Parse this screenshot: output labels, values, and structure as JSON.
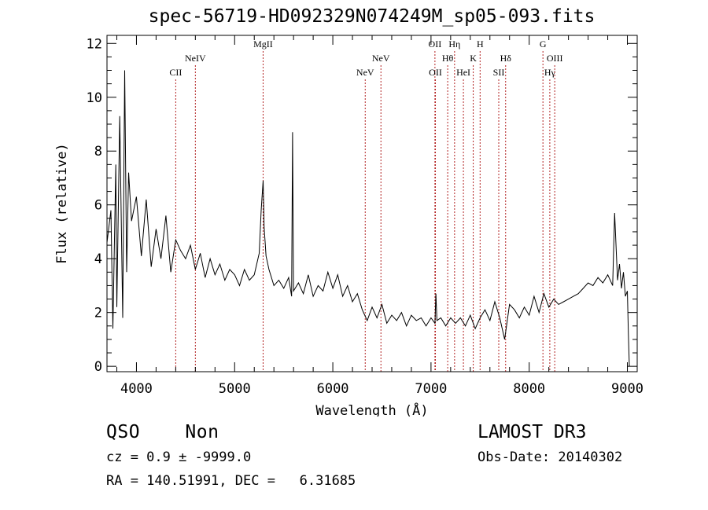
{
  "chart_data": {
    "type": "line",
    "title": "spec-56719-HD092329N074249M_sp05-093.fits",
    "xlabel": "Wavelength (Å)",
    "ylabel": "Flux (relative)",
    "xlim": [
      3700,
      9100
    ],
    "ylim": [
      -0.2,
      12.3
    ],
    "x_ticks": [
      4000,
      5000,
      6000,
      7000,
      8000,
      9000
    ],
    "x_tick_labels": [
      "4000",
      "5000",
      "6000",
      "7000",
      "8000",
      "9000"
    ],
    "y_ticks": [
      0,
      2,
      4,
      6,
      8,
      10,
      12
    ],
    "y_tick_labels": [
      "0",
      "2",
      "4",
      "6",
      "8",
      "10",
      "12"
    ],
    "line_color": "#000000",
    "marker_color": "#b22222",
    "spectrum": {
      "name": "flux",
      "x": [
        3700,
        3740,
        3760,
        3790,
        3800,
        3830,
        3860,
        3880,
        3900,
        3920,
        3950,
        4000,
        4050,
        4100,
        4150,
        4200,
        4250,
        4300,
        4350,
        4400,
        4450,
        4500,
        4550,
        4600,
        4650,
        4700,
        4750,
        4800,
        4850,
        4900,
        4950,
        5000,
        5050,
        5100,
        5150,
        5200,
        5250,
        5270,
        5290,
        5300,
        5320,
        5350,
        5400,
        5450,
        5500,
        5550,
        5580,
        5590,
        5600,
        5650,
        5700,
        5750,
        5800,
        5850,
        5900,
        5950,
        6000,
        6050,
        6100,
        6150,
        6200,
        6250,
        6300,
        6350,
        6400,
        6450,
        6500,
        6550,
        6600,
        6650,
        6700,
        6750,
        6800,
        6850,
        6900,
        6950,
        7000,
        7040,
        7050,
        7060,
        7100,
        7150,
        7200,
        7250,
        7300,
        7350,
        7400,
        7450,
        7500,
        7550,
        7600,
        7650,
        7700,
        7750,
        7800,
        7850,
        7900,
        7950,
        8000,
        8050,
        8100,
        8150,
        8200,
        8250,
        8300,
        8350,
        8400,
        8450,
        8500,
        8550,
        8600,
        8650,
        8700,
        8750,
        8800,
        8850,
        8870,
        8900,
        8920,
        8940,
        8960,
        8980,
        9000,
        9010,
        9020
      ],
      "values": [
        4.6,
        5.8,
        1.4,
        7.5,
        2.2,
        9.3,
        1.8,
        11.0,
        3.5,
        7.2,
        5.4,
        6.3,
        4.1,
        6.2,
        3.7,
        5.1,
        4.0,
        5.6,
        3.5,
        4.7,
        4.3,
        4.0,
        4.5,
        3.6,
        4.2,
        3.3,
        4.0,
        3.4,
        3.8,
        3.2,
        3.6,
        3.4,
        3.0,
        3.6,
        3.2,
        3.4,
        4.2,
        5.8,
        6.9,
        5.2,
        4.1,
        3.6,
        3.0,
        3.2,
        2.9,
        3.3,
        2.6,
        8.7,
        2.8,
        3.1,
        2.7,
        3.4,
        2.6,
        3.0,
        2.8,
        3.5,
        2.9,
        3.4,
        2.6,
        3.0,
        2.4,
        2.7,
        2.1,
        1.7,
        2.2,
        1.8,
        2.3,
        1.6,
        1.9,
        1.7,
        2.0,
        1.5,
        1.9,
        1.7,
        1.8,
        1.5,
        1.8,
        1.6,
        2.7,
        1.7,
        1.8,
        1.5,
        1.8,
        1.6,
        1.8,
        1.5,
        1.9,
        1.4,
        1.8,
        2.1,
        1.7,
        2.4,
        1.8,
        1.0,
        2.3,
        2.1,
        1.8,
        2.2,
        1.9,
        2.6,
        2.0,
        2.7,
        2.2,
        2.5,
        2.3,
        2.4,
        2.5,
        2.6,
        2.7,
        2.9,
        3.1,
        3.0,
        3.3,
        3.1,
        3.4,
        3.0,
        5.7,
        3.2,
        3.8,
        2.9,
        3.5,
        2.6,
        2.8,
        1.2,
        0.0
      ]
    },
    "markers": [
      {
        "label": "CII",
        "x": 4400,
        "row": 2
      },
      {
        "label": "NeIV",
        "x": 4600,
        "row": 1
      },
      {
        "label": "MgII",
        "x": 5290,
        "row": 0
      },
      {
        "label": "NeV",
        "x": 6330,
        "row": 2
      },
      {
        "label": "NeV",
        "x": 6490,
        "row": 1
      },
      {
        "label": "OII",
        "x": 7040,
        "row": 0
      },
      {
        "label": "OII",
        "x": 7045,
        "row": 2
      },
      {
        "label": "Hθ",
        "x": 7170,
        "row": 1
      },
      {
        "label": "Hη",
        "x": 7240,
        "row": 0
      },
      {
        "label": "HeI",
        "x": 7330,
        "row": 2
      },
      {
        "label": "K",
        "x": 7430,
        "row": 1
      },
      {
        "label": "H",
        "x": 7500,
        "row": 0
      },
      {
        "label": "SII",
        "x": 7690,
        "row": 2
      },
      {
        "label": "Hδ",
        "x": 7760,
        "row": 1
      },
      {
        "label": "G",
        "x": 8140,
        "row": 0
      },
      {
        "label": "Hγ",
        "x": 8210,
        "row": 2
      },
      {
        "label": "OIII",
        "x": 8260,
        "row": 1
      }
    ]
  },
  "info": {
    "object_class": "QSO    Non",
    "survey": "LAMOST DR3",
    "cz_text": "cz = 0.9 ± -9999.0",
    "obs_date_text": "Obs-Date: 20140302",
    "radec_text": "RA = 140.51991, DEC =   6.31685"
  }
}
